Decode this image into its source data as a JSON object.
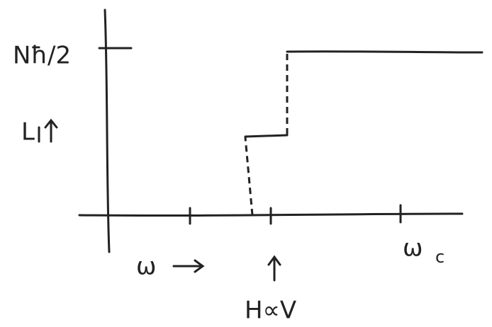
{
  "labels": {
    "y_top": "Nħ/2",
    "y_axis": "L",
    "x_axis": "ω",
    "marker": "H∝V",
    "x_end": {
      "base": "ω",
      "sub": "c"
    }
  }
}
